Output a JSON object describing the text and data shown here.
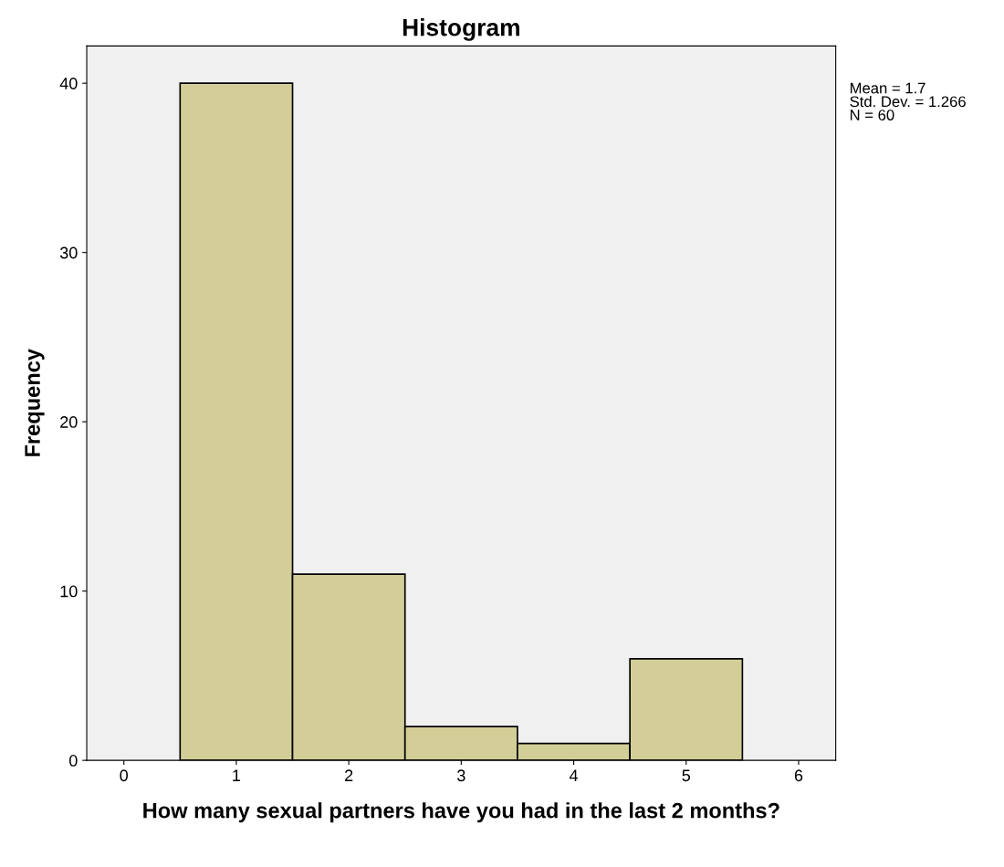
{
  "chart_data": {
    "type": "histogram",
    "title": "Histogram",
    "xlabel": "How many sexual partners have you had in the last 2 months?",
    "ylabel": "Frequency",
    "bins": [
      0.5,
      1.5,
      2.5,
      3.5,
      4.5,
      5.5
    ],
    "values": [
      40,
      11,
      2,
      1,
      6
    ],
    "color": "#d3ce97",
    "xlim": [
      -0.33,
      6.33
    ],
    "xticks": [
      0,
      1,
      2,
      3,
      4,
      5,
      6
    ],
    "ylim": [
      0,
      42.2
    ],
    "yticks": [
      0,
      10,
      20,
      30,
      40
    ],
    "grid": false,
    "legend": false,
    "annotations": [
      "Mean = 1.7",
      "Std. Dev. = 1.266",
      "N = 60"
    ]
  }
}
